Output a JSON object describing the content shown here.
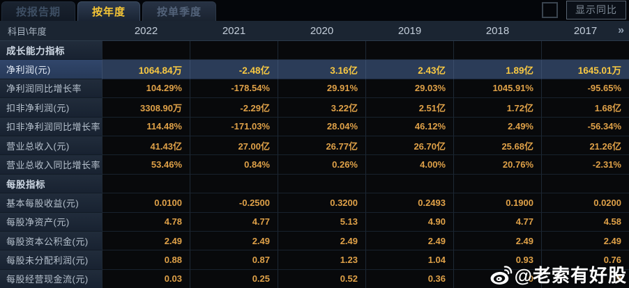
{
  "tabs": [
    {
      "label": "按报告期",
      "active": false
    },
    {
      "label": "按年度",
      "active": true
    },
    {
      "label": "按单季度",
      "active": false
    }
  ],
  "controls": {
    "show_yoy_label": "显示同比",
    "checkbox_checked": false
  },
  "table": {
    "corner_header": "科目\\年度",
    "year_headers": [
      "2022",
      "2021",
      "2020",
      "2019",
      "2018",
      "2017"
    ],
    "more_icon": "»",
    "rows": [
      {
        "type": "section",
        "highlight": false,
        "label": "成长能力指标",
        "values": [
          "",
          "",
          "",
          "",
          "",
          ""
        ]
      },
      {
        "type": "data",
        "highlight": true,
        "label": "净利润(元)",
        "values": [
          "1064.84万",
          "-2.48亿",
          "3.16亿",
          "2.43亿",
          "1.89亿",
          "1645.01万"
        ]
      },
      {
        "type": "data",
        "highlight": false,
        "label": "净利润同比增长率",
        "values": [
          "104.29%",
          "-178.54%",
          "29.91%",
          "29.03%",
          "1045.91%",
          "-95.65%"
        ]
      },
      {
        "type": "data",
        "highlight": false,
        "label": "扣非净利润(元)",
        "values": [
          "3308.90万",
          "-2.29亿",
          "3.22亿",
          "2.51亿",
          "1.72亿",
          "1.68亿"
        ]
      },
      {
        "type": "data",
        "highlight": false,
        "label": "扣非净利润同比增长率",
        "values": [
          "114.48%",
          "-171.03%",
          "28.04%",
          "46.12%",
          "2.49%",
          "-56.34%"
        ]
      },
      {
        "type": "data",
        "highlight": false,
        "label": "营业总收入(元)",
        "values": [
          "41.43亿",
          "27.00亿",
          "26.77亿",
          "26.70亿",
          "25.68亿",
          "21.26亿"
        ]
      },
      {
        "type": "data",
        "highlight": false,
        "label": "营业总收入同比增长率",
        "values": [
          "53.46%",
          "0.84%",
          "0.26%",
          "4.00%",
          "20.76%",
          "-2.31%"
        ]
      },
      {
        "type": "section",
        "highlight": false,
        "label": "每股指标",
        "values": [
          "",
          "",
          "",
          "",
          "",
          ""
        ]
      },
      {
        "type": "data",
        "highlight": false,
        "label": "基本每股收益(元)",
        "values": [
          "0.0100",
          "-0.2500",
          "0.3200",
          "0.2493",
          "0.1900",
          "0.0200"
        ]
      },
      {
        "type": "data",
        "highlight": false,
        "label": "每股净资产(元)",
        "values": [
          "4.78",
          "4.77",
          "5.13",
          "4.90",
          "4.77",
          "4.58"
        ]
      },
      {
        "type": "data",
        "highlight": false,
        "label": "每股资本公积金(元)",
        "values": [
          "2.49",
          "2.49",
          "2.49",
          "2.49",
          "2.49",
          "2.49"
        ]
      },
      {
        "type": "data",
        "highlight": false,
        "label": "每股未分配利润(元)",
        "values": [
          "0.88",
          "0.87",
          "1.23",
          "1.04",
          "0.93",
          "0.76"
        ]
      },
      {
        "type": "data",
        "highlight": false,
        "label": "每股经营现金流(元)",
        "values": [
          "0.03",
          "0.25",
          "0.52",
          "0.36",
          "0",
          "9"
        ]
      }
    ]
  },
  "watermark": {
    "text": "@老索有好股",
    "icon": "weibo-icon"
  },
  "colors": {
    "accent_gold": "#f6c636",
    "value_orange": "#dfa148",
    "highlight_row_bg": "#2b3c58",
    "header_bg": "#1b2532",
    "label_col_bg": "#1d2836"
  }
}
